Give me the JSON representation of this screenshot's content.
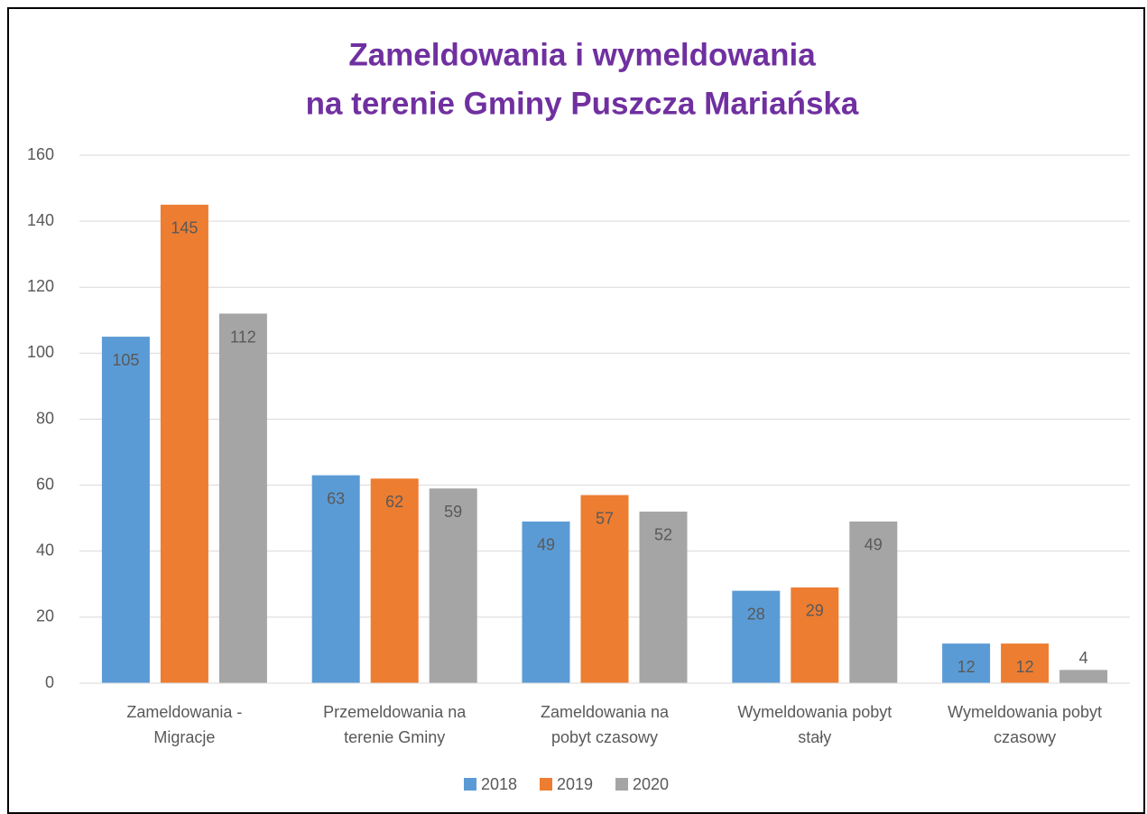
{
  "chart_data": {
    "type": "bar",
    "title": [
      "Zameldowania i wymeldowania",
      "na terenie Gminy Puszcza Mariańska"
    ],
    "categories": [
      [
        "Zameldowania -",
        "Migracje"
      ],
      [
        "Przemeldowania na",
        "terenie Gminy"
      ],
      [
        "Zameldowania na",
        "pobyt czasowy"
      ],
      [
        "Wymeldowania pobyt",
        "stały"
      ],
      [
        "Wymeldowania pobyt",
        "czasowy"
      ]
    ],
    "series": [
      {
        "name": "2018",
        "color": "#5b9bd5",
        "values": [
          105,
          63,
          49,
          28,
          12
        ]
      },
      {
        "name": "2019",
        "color": "#ed7d31",
        "values": [
          145,
          62,
          57,
          29,
          12
        ]
      },
      {
        "name": "2020",
        "color": "#a5a5a5",
        "values": [
          112,
          59,
          52,
          49,
          4
        ]
      }
    ],
    "ylim": [
      0,
      160
    ],
    "yticks": [
      0,
      20,
      40,
      60,
      80,
      100,
      120,
      140,
      160
    ],
    "grid": true,
    "legend": "bottom"
  }
}
